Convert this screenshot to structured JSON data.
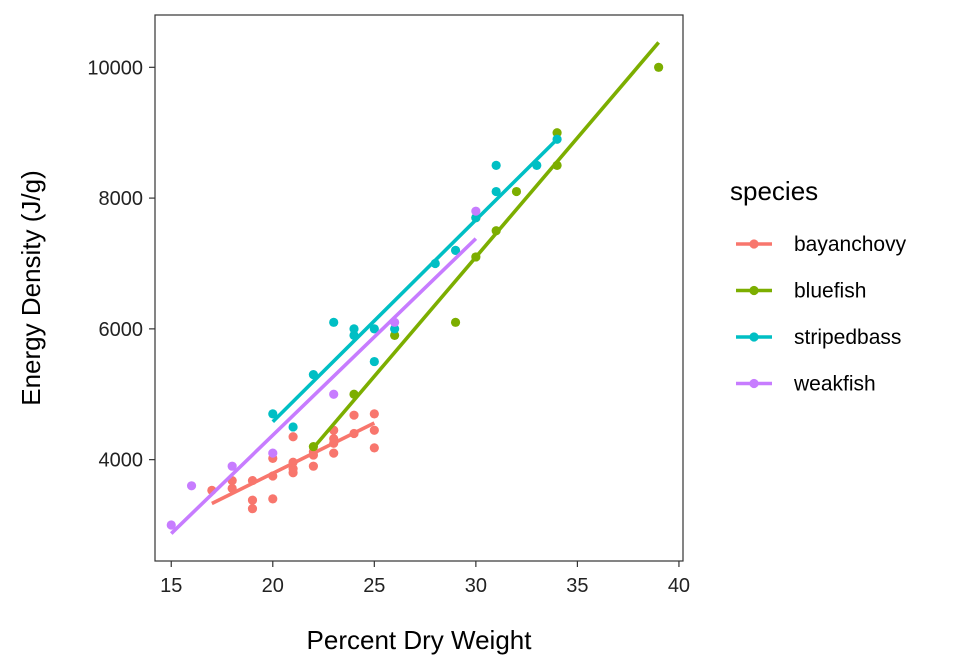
{
  "chart_data": {
    "type": "scatter",
    "xlabel": "Percent Dry Weight",
    "ylabel": "Energy Density (J/g)",
    "xlim": [
      14.2,
      40.2
    ],
    "ylim": [
      2450,
      10800
    ],
    "x_ticks": [
      15,
      20,
      25,
      30,
      35,
      40
    ],
    "y_ticks": [
      4000,
      6000,
      8000,
      10000
    ],
    "grid": false,
    "legend": {
      "title": "species",
      "position": "right"
    },
    "series": [
      {
        "name": "bayanchovy",
        "color": "#F8766D",
        "points": [
          [
            17,
            3530
          ],
          [
            18,
            3560
          ],
          [
            18,
            3680
          ],
          [
            19,
            3250
          ],
          [
            19,
            3380
          ],
          [
            19,
            3680
          ],
          [
            20,
            3400
          ],
          [
            20,
            3750
          ],
          [
            20,
            4020
          ],
          [
            21,
            3800
          ],
          [
            21,
            3860
          ],
          [
            21,
            3960
          ],
          [
            21,
            4350
          ],
          [
            22,
            3900
          ],
          [
            22,
            4070
          ],
          [
            22,
            4120
          ],
          [
            23,
            4100
          ],
          [
            23,
            4250
          ],
          [
            23,
            4320
          ],
          [
            23,
            4450
          ],
          [
            24,
            4400
          ],
          [
            24,
            4680
          ],
          [
            25,
            4180
          ],
          [
            25,
            4450
          ],
          [
            25,
            4700
          ]
        ],
        "fit": [
          [
            17,
            3330
          ],
          [
            25,
            4560
          ]
        ]
      },
      {
        "name": "bluefish",
        "color": "#7CAE00",
        "points": [
          [
            22,
            4200
          ],
          [
            24,
            5000
          ],
          [
            26,
            5900
          ],
          [
            29,
            6100
          ],
          [
            30,
            7100
          ],
          [
            30,
            7700
          ],
          [
            31,
            7500
          ],
          [
            32,
            8100
          ],
          [
            34,
            8500
          ],
          [
            34,
            9000
          ],
          [
            39,
            10000
          ]
        ],
        "fit": [
          [
            22,
            4180
          ],
          [
            39,
            10380
          ]
        ]
      },
      {
        "name": "stripedbass",
        "color": "#00BFC4",
        "points": [
          [
            20,
            4700
          ],
          [
            21,
            4500
          ],
          [
            22,
            5300
          ],
          [
            23,
            6100
          ],
          [
            24,
            5900
          ],
          [
            24,
            6000
          ],
          [
            25,
            5500
          ],
          [
            25,
            6000
          ],
          [
            26,
            6000
          ],
          [
            28,
            7000
          ],
          [
            29,
            7200
          ],
          [
            30,
            7700
          ],
          [
            31,
            8100
          ],
          [
            31,
            8500
          ],
          [
            33,
            8500
          ],
          [
            34,
            8900
          ]
        ],
        "fit": [
          [
            20,
            4580
          ],
          [
            34,
            8900
          ]
        ]
      },
      {
        "name": "weakfish",
        "color": "#C77CFF",
        "points": [
          [
            15,
            3000
          ],
          [
            16,
            3600
          ],
          [
            18,
            3900
          ],
          [
            20,
            4100
          ],
          [
            23,
            5000
          ],
          [
            26,
            6100
          ],
          [
            30,
            7800
          ]
        ],
        "fit": [
          [
            15,
            2870
          ],
          [
            30,
            7380
          ]
        ]
      }
    ]
  }
}
